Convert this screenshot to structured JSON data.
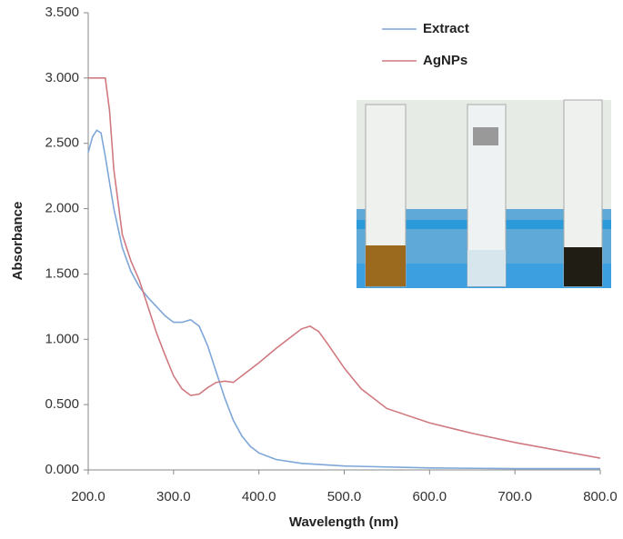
{
  "chart_data": {
    "type": "line",
    "x_label": "Wavelength (nm)",
    "y_label": "Absorbance",
    "xlim": [
      200,
      800
    ],
    "ylim": [
      0,
      3.5
    ],
    "xticks": [
      {
        "value": 200,
        "label": "200.0"
      },
      {
        "value": 300,
        "label": "300.0"
      },
      {
        "value": 400,
        "label": "400.0"
      },
      {
        "value": 500,
        "label": "500.0"
      },
      {
        "value": 600,
        "label": "600.0"
      },
      {
        "value": 700,
        "label": "700.0"
      },
      {
        "value": 800,
        "label": "800.0"
      }
    ],
    "yticks": [
      {
        "value": 0,
        "label": "0.000"
      },
      {
        "value": 0.5,
        "label": "0.500"
      },
      {
        "value": 1,
        "label": "1.000"
      },
      {
        "value": 1.5,
        "label": "1.500"
      },
      {
        "value": 2,
        "label": "2.000"
      },
      {
        "value": 2.5,
        "label": "2.500"
      },
      {
        "value": 3,
        "label": "3.000"
      },
      {
        "value": 3.5,
        "label": "3.500"
      }
    ],
    "legend": "upper right",
    "series": [
      {
        "name": "Extract",
        "color": "#7ea6d8",
        "x": [
          200,
          205,
          210,
          215,
          220,
          230,
          240,
          250,
          260,
          270,
          280,
          290,
          300,
          310,
          320,
          330,
          340,
          350,
          360,
          370,
          380,
          390,
          400,
          420,
          450,
          500,
          600,
          700,
          800
        ],
        "values": [
          2.43,
          2.55,
          2.6,
          2.58,
          2.4,
          2.0,
          1.7,
          1.52,
          1.4,
          1.32,
          1.25,
          1.18,
          1.13,
          1.13,
          1.15,
          1.1,
          0.95,
          0.75,
          0.55,
          0.38,
          0.26,
          0.18,
          0.13,
          0.08,
          0.05,
          0.03,
          0.015,
          0.01,
          0.01
        ]
      },
      {
        "name": "AgNPs",
        "color": "#d07a80",
        "x": [
          200,
          210,
          220,
          225,
          230,
          240,
          250,
          260,
          270,
          280,
          290,
          300,
          310,
          320,
          330,
          340,
          350,
          360,
          370,
          380,
          400,
          420,
          440,
          450,
          460,
          470,
          480,
          500,
          520,
          550,
          600,
          650,
          700,
          750,
          800
        ],
        "values": [
          3.0,
          3.0,
          3.0,
          2.75,
          2.3,
          1.8,
          1.6,
          1.45,
          1.25,
          1.05,
          0.88,
          0.72,
          0.62,
          0.57,
          0.58,
          0.63,
          0.67,
          0.68,
          0.67,
          0.72,
          0.82,
          0.93,
          1.03,
          1.08,
          1.1,
          1.06,
          0.97,
          0.78,
          0.62,
          0.47,
          0.36,
          0.28,
          0.21,
          0.15,
          0.09
        ]
      }
    ]
  }
}
